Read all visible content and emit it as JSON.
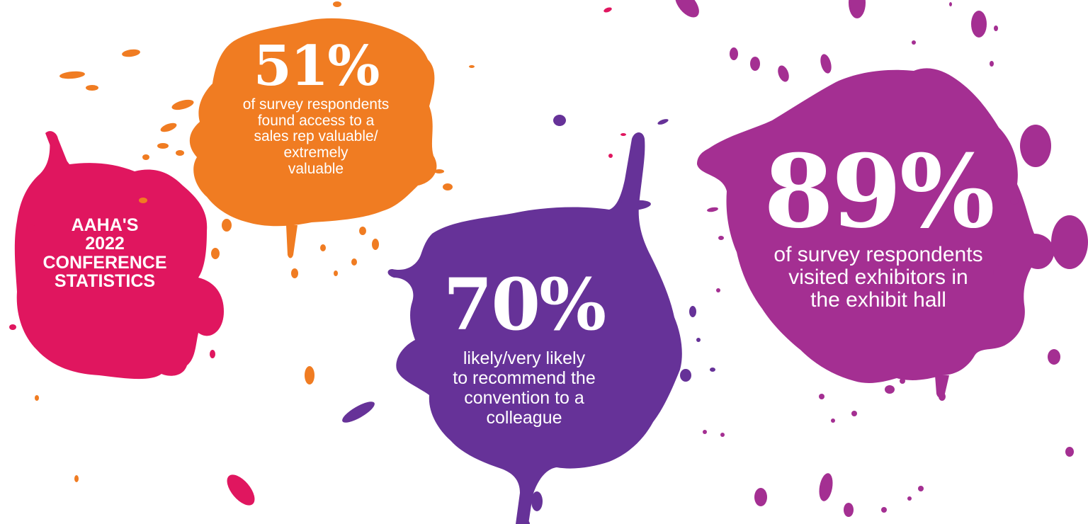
{
  "colors": {
    "pink": "#E0165F",
    "orange": "#F07C22",
    "purple": "#663298",
    "magenta": "#A42F92"
  },
  "title": {
    "lines": [
      "AAHA'S",
      "2022",
      "CONFERENCE",
      "STATISTICS"
    ]
  },
  "stats": [
    {
      "value": "51%",
      "caption_lines": [
        "of survey respondents",
        "found access to a",
        "sales rep valuable/",
        "extremely",
        "valuable"
      ]
    },
    {
      "value": "70%",
      "caption_lines": [
        "likely/very likely",
        "to recommend the",
        "convention to a",
        "colleague"
      ]
    },
    {
      "value": "89%",
      "caption_lines": [
        "of survey respondents",
        "visited exhibitors in",
        "the exhibit hall"
      ]
    }
  ]
}
